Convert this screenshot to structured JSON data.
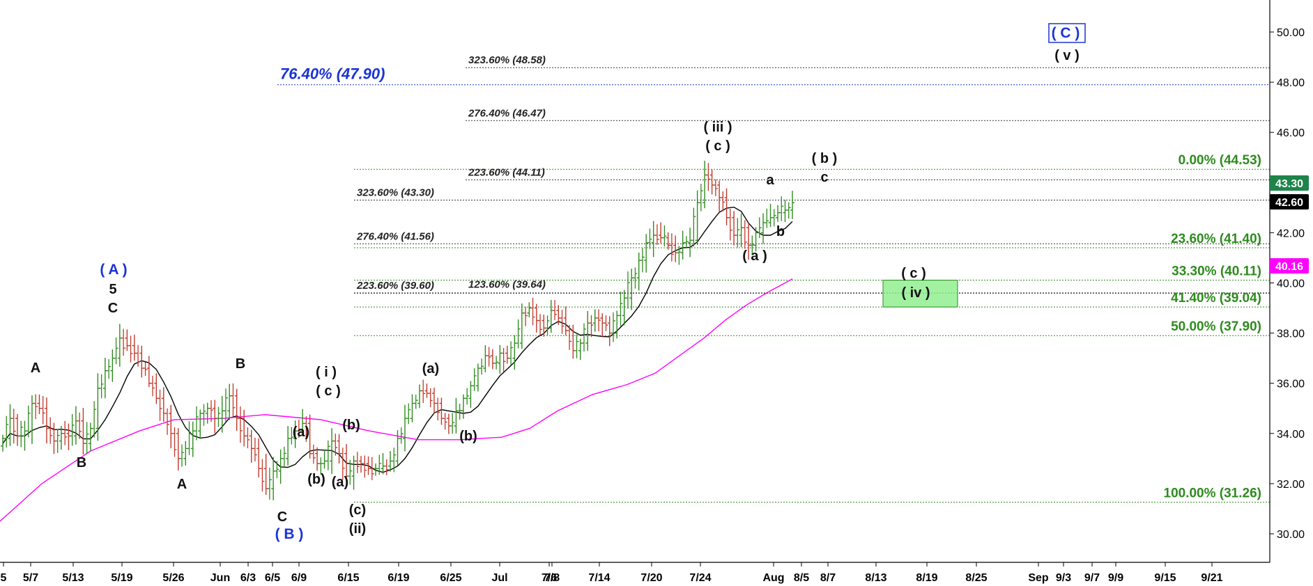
{
  "chart_data": {
    "type": "candlestick",
    "y_axis": {
      "ylim": [
        29,
        50
      ],
      "ticks": [
        "30.00",
        "32.00",
        "34.00",
        "36.00",
        "38.00",
        "40.00",
        "42.00",
        "44.00",
        "46.00",
        "48.00",
        "50.00"
      ]
    },
    "x_axis": {
      "ticks": [
        "5",
        "5/7",
        "5/13",
        "5/19",
        "5/26",
        "Jun",
        "6/3",
        "6/5",
        "6/9",
        "6/15",
        "6/19",
        "6/25",
        "Jul",
        "7/6",
        "7/8",
        "7/14",
        "7/20",
        "7/24",
        "Aug",
        "8/5",
        "8/7",
        "8/13",
        "8/19",
        "8/25",
        "Sep",
        "9/3",
        "9/7",
        "9/9",
        "9/15",
        "9/21"
      ]
    },
    "price_badges": [
      {
        "value": "43.30",
        "color": "#1e8449"
      },
      {
        "value": "42.60",
        "color": "#000000"
      },
      {
        "value": "40.16",
        "color": "#ff00ff"
      }
    ],
    "fib_left": [
      {
        "label": "323.60% (48.58)",
        "value": 48.58
      },
      {
        "label": "276.40% (46.47)",
        "value": 46.47
      },
      {
        "label": "223.60% (44.11)",
        "value": 44.11
      },
      {
        "label": "323.60% (43.30)",
        "value": 43.3
      },
      {
        "label": "276.40% (41.56)",
        "value": 41.56
      },
      {
        "label": "223.60% (39.60)",
        "value": 39.6
      },
      {
        "label": "123.60% (39.64)",
        "value": 39.64
      }
    ],
    "fib_right": [
      {
        "label": "0.00% (44.53)",
        "value": 44.53
      },
      {
        "label": "23.60% (41.40)",
        "value": 41.4
      },
      {
        "label": "33.30% (40.11)",
        "value": 40.11
      },
      {
        "label": "41.40% (39.04)",
        "value": 39.04
      },
      {
        "label": "50.00% (37.90)",
        "value": 37.9
      },
      {
        "label": "100.00% (31.26)",
        "value": 31.26
      }
    ],
    "blue_level": {
      "label": "76.40% (47.90)",
      "value": 47.9
    },
    "wave_labels": [
      "A",
      "B",
      "A",
      "B",
      "C",
      "5",
      "C",
      "( A )",
      "( B )",
      "( i )",
      "( c )",
      "(a)",
      "(b)",
      "(b)",
      "(a)",
      "(c)",
      "(ii)",
      "(a)",
      "(b)",
      "( iii )",
      "( c )",
      "a",
      "b",
      "( a )",
      "( b )",
      "c",
      "( c )",
      "( iv )",
      "( C )",
      "( v )"
    ],
    "series": [
      {
        "name": "",
        "type": "ohlc",
        "color": "#2e8b1e",
        "down_color": "#c0392b"
      },
      {
        "name": "",
        "type": "moving_average",
        "color": "#000000"
      },
      {
        "name": "",
        "type": "moving_average",
        "color": "#ff00ff"
      }
    ],
    "ohlc_close_path": [
      33.8,
      34.6,
      33.9,
      34.1,
      35.2,
      35.0,
      34.2,
      33.7,
      34.0,
      33.9,
      34.5,
      33.6,
      34.2,
      35.8,
      36.5,
      37.0,
      37.8,
      37.5,
      37.2,
      36.6,
      36.0,
      35.4,
      34.8,
      34.0,
      33.0,
      33.4,
      34.1,
      34.8,
      35.0,
      34.6,
      34.9,
      35.5,
      34.6,
      33.9,
      33.4,
      32.6,
      31.8,
      32.5,
      33.0,
      33.8,
      34.1,
      34.4,
      33.2,
      32.8,
      32.9,
      33.7,
      33.2,
      32.3,
      32.9,
      32.8,
      32.6,
      32.6,
      32.7,
      32.9,
      33.8,
      34.6,
      35.2,
      35.7,
      35.6,
      35.2,
      34.6,
      34.3,
      34.9,
      35.4,
      35.9,
      36.6,
      37.1,
      36.8,
      37.2,
      37.0,
      37.6,
      38.8,
      39.0,
      38.5,
      38.2,
      38.9,
      38.6,
      38.1,
      37.3,
      37.6,
      38.4,
      38.6,
      38.4,
      38.0,
      38.7,
      39.4,
      40.2,
      40.9,
      41.6,
      41.9,
      41.8,
      41.5,
      41.2,
      41.6,
      41.7,
      43.2,
      44.3,
      43.9,
      43.4,
      42.6,
      41.9,
      42.2,
      41.5,
      42.0,
      42.4,
      42.6,
      42.8,
      42.9,
      43.2
    ]
  }
}
